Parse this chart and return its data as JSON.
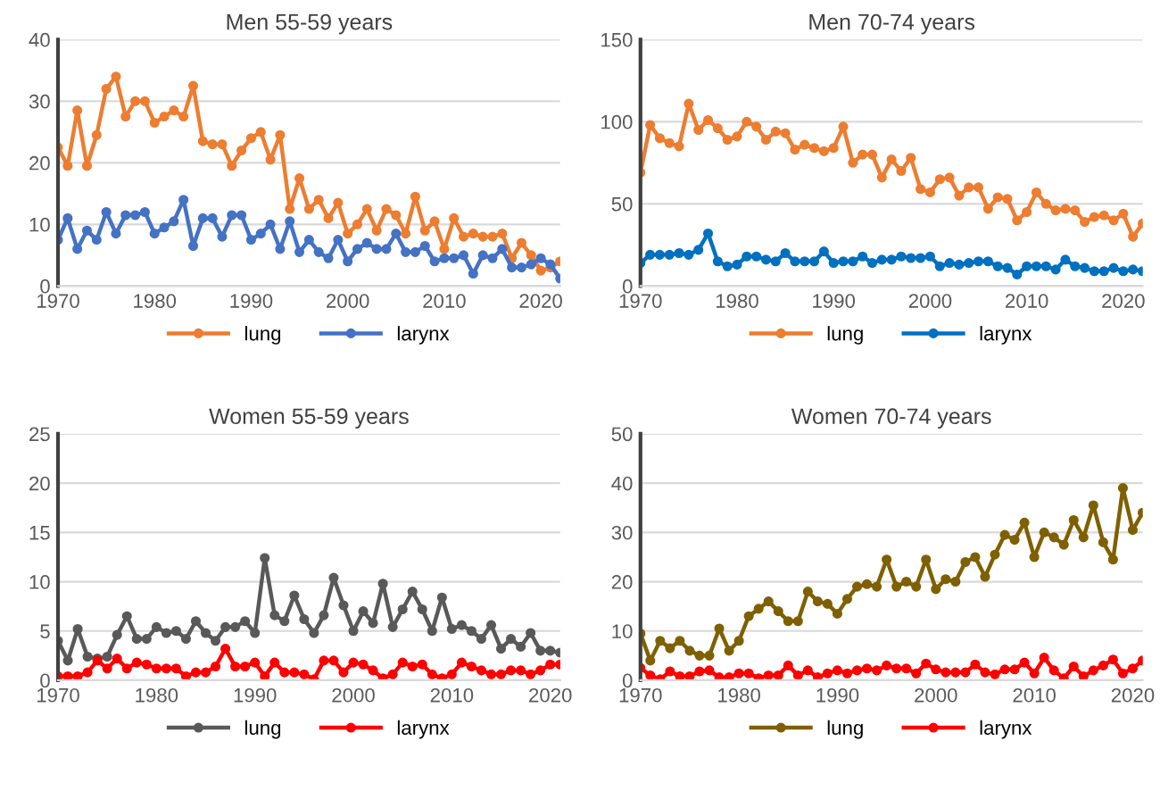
{
  "chart_data": [
    {
      "type": "line",
      "title": "Men 55-59 years",
      "x": [
        1970,
        1971,
        1972,
        1973,
        1974,
        1975,
        1976,
        1977,
        1978,
        1979,
        1980,
        1981,
        1982,
        1983,
        1984,
        1985,
        1986,
        1987,
        1988,
        1989,
        1990,
        1991,
        1992,
        1993,
        1994,
        1995,
        1996,
        1997,
        1998,
        1999,
        2000,
        2001,
        2002,
        2003,
        2004,
        2005,
        2006,
        2007,
        2008,
        2009,
        2010,
        2011,
        2012,
        2013,
        2014,
        2015,
        2016,
        2017,
        2018,
        2019,
        2020,
        2021,
        2022
      ],
      "xlim": [
        1970,
        2022
      ],
      "xticks": [
        1970,
        1980,
        1990,
        2000,
        2010,
        2020
      ],
      "ylim": [
        0,
        40
      ],
      "yticks": [
        0,
        10,
        20,
        30,
        40
      ],
      "grid": "y",
      "legend": "bottom",
      "marker": "circle",
      "line_style": "solid",
      "series": [
        {
          "name": "lung",
          "color": "#ed7d31",
          "values": [
            22.5,
            19.5,
            28.5,
            19.5,
            24.5,
            32,
            34,
            27.5,
            30,
            30,
            26.5,
            27.5,
            28.5,
            27.5,
            32.5,
            23.5,
            23,
            23,
            19.5,
            22,
            24,
            25,
            20.5,
            24.5,
            12.5,
            17.5,
            12.5,
            14,
            11,
            13.5,
            8.5,
            10,
            12.5,
            9,
            12.5,
            11.5,
            8.5,
            14.5,
            9,
            10.5,
            6,
            11,
            8,
            8.5,
            8,
            8,
            8.5,
            4.5,
            7,
            5,
            2.5,
            3,
            4
          ]
        },
        {
          "name": "larynx",
          "color": "#4472c4",
          "values": [
            7.5,
            11,
            6,
            9,
            7.5,
            12,
            8.5,
            11.5,
            11.5,
            12,
            8.5,
            9.5,
            10.5,
            14,
            6.5,
            11,
            11,
            8,
            11.5,
            11.5,
            7.5,
            8.5,
            10,
            6,
            10.5,
            5.5,
            7.5,
            5.5,
            4.5,
            7.5,
            4,
            6,
            7,
            6,
            6,
            8.5,
            5.5,
            5.5,
            6.5,
            4,
            4.5,
            4.5,
            5,
            2,
            5,
            4.5,
            6,
            3,
            3,
            3.5,
            4.5,
            3.5,
            1.2
          ]
        }
      ]
    },
    {
      "type": "line",
      "title": "Men 70-74 years",
      "x": [
        1970,
        1971,
        1972,
        1973,
        1974,
        1975,
        1976,
        1977,
        1978,
        1979,
        1980,
        1981,
        1982,
        1983,
        1984,
        1985,
        1986,
        1987,
        1988,
        1989,
        1990,
        1991,
        1992,
        1993,
        1994,
        1995,
        1996,
        1997,
        1998,
        1999,
        2000,
        2001,
        2002,
        2003,
        2004,
        2005,
        2006,
        2007,
        2008,
        2009,
        2010,
        2011,
        2012,
        2013,
        2014,
        2015,
        2016,
        2017,
        2018,
        2019,
        2020,
        2021,
        2022
      ],
      "xlim": [
        1970,
        2022
      ],
      "xticks": [
        1970,
        1980,
        1990,
        2000,
        2010,
        2020
      ],
      "ylim": [
        0,
        150
      ],
      "yticks": [
        0,
        50,
        100,
        150
      ],
      "grid": "y",
      "legend": "bottom",
      "marker": "circle",
      "line_style": "solid",
      "series": [
        {
          "name": "lung",
          "color": "#ed7d31",
          "values": [
            69,
            98,
            90,
            87,
            85,
            111,
            95,
            101,
            96,
            89,
            91,
            100,
            97,
            89,
            94,
            93,
            83,
            86,
            84,
            82,
            84,
            97,
            75,
            80,
            80,
            66,
            77,
            70,
            78,
            59,
            57,
            65,
            66,
            55,
            60,
            60,
            47,
            54,
            53,
            40,
            45,
            57,
            50,
            46,
            47,
            46,
            39,
            42,
            43,
            40,
            44,
            30,
            38
          ]
        },
        {
          "name": "larynx",
          "color": "#0070c0",
          "values": [
            14,
            19,
            19,
            19,
            20,
            19,
            22,
            32,
            15,
            12,
            13,
            18,
            18,
            16,
            15,
            20,
            15,
            15,
            15,
            21,
            14,
            15,
            15,
            18,
            14,
            16,
            16,
            18,
            17,
            17,
            18,
            12,
            14,
            13,
            14,
            15,
            15,
            12,
            11,
            7,
            12,
            12,
            12,
            10,
            16,
            12,
            11,
            9,
            9,
            11,
            9,
            10,
            9
          ]
        }
      ]
    },
    {
      "type": "line",
      "title": "Women 55-59 years",
      "x": [
        1970,
        1971,
        1972,
        1973,
        1974,
        1975,
        1976,
        1977,
        1978,
        1979,
        1980,
        1981,
        1982,
        1983,
        1984,
        1985,
        1986,
        1987,
        1988,
        1989,
        1990,
        1991,
        1992,
        1993,
        1994,
        1995,
        1996,
        1997,
        1998,
        1999,
        2000,
        2001,
        2002,
        2003,
        2004,
        2005,
        2006,
        2007,
        2008,
        2009,
        2010,
        2011,
        2012,
        2013,
        2014,
        2015,
        2016,
        2017,
        2018,
        2019,
        2020,
        2021
      ],
      "xlim": [
        1970,
        2021
      ],
      "xticks": [
        1970,
        1980,
        1990,
        2000,
        2010,
        2020
      ],
      "ylim": [
        0,
        25
      ],
      "yticks": [
        0,
        5,
        10,
        15,
        20,
        25
      ],
      "grid": "y",
      "legend": "bottom",
      "marker": "circle",
      "line_style": "solid",
      "series": [
        {
          "name": "lung",
          "color": "#595959",
          "values": [
            4,
            2,
            5.2,
            2.4,
            2.2,
            2.4,
            4.6,
            6.5,
            4.2,
            4.2,
            5.4,
            4.8,
            5,
            4.2,
            6,
            4.8,
            4,
            5.4,
            5.4,
            6,
            4.8,
            12.4,
            6.6,
            6,
            8.6,
            6.2,
            4.8,
            6.6,
            10.4,
            7.6,
            5,
            7,
            5.8,
            9.8,
            5.4,
            7.2,
            9,
            7.2,
            5,
            8.4,
            5.2,
            5.6,
            5,
            4.2,
            5.6,
            3.2,
            4.2,
            3.4,
            4.8,
            3,
            3,
            2.8
          ]
        },
        {
          "name": "larynx",
          "color": "#ff0000",
          "values": [
            0.4,
            0.4,
            0.4,
            0.8,
            2,
            1.2,
            2.2,
            1.2,
            1.8,
            1.6,
            1.2,
            1.2,
            1.2,
            0.4,
            0.8,
            0.8,
            1.4,
            3.2,
            1.4,
            1.4,
            1.8,
            0.4,
            1.8,
            0.8,
            0.8,
            0.6,
            0.1,
            2,
            2,
            0.8,
            1.8,
            1.6,
            1,
            0.2,
            0.6,
            1.8,
            1.4,
            1.6,
            0.6,
            0.2,
            0.6,
            1.8,
            1.4,
            1,
            0.6,
            0.6,
            1,
            1,
            0.6,
            1,
            1.6,
            1.6
          ]
        }
      ]
    },
    {
      "type": "line",
      "title": "Women 70-74 years",
      "x": [
        1970,
        1971,
        1972,
        1973,
        1974,
        1975,
        1976,
        1977,
        1978,
        1979,
        1980,
        1981,
        1982,
        1983,
        1984,
        1985,
        1986,
        1987,
        1988,
        1989,
        1990,
        1991,
        1992,
        1993,
        1994,
        1995,
        1996,
        1997,
        1998,
        1999,
        2000,
        2001,
        2002,
        2003,
        2004,
        2005,
        2006,
        2007,
        2008,
        2009,
        2010,
        2011,
        2012,
        2013,
        2014,
        2015,
        2016,
        2017,
        2018,
        2019,
        2020,
        2021
      ],
      "xlim": [
        1970,
        2021
      ],
      "xticks": [
        1970,
        1980,
        1990,
        2000,
        2010,
        2020
      ],
      "ylim": [
        0,
        50
      ],
      "yticks": [
        0,
        10,
        20,
        30,
        40,
        50
      ],
      "grid": "y",
      "legend": "bottom",
      "marker": "circle",
      "line_style": "solid",
      "series": [
        {
          "name": "lung",
          "color": "#7f6000",
          "values": [
            9.5,
            4,
            8,
            6.5,
            8,
            6,
            5,
            5,
            10.5,
            6,
            8,
            13,
            14.5,
            16,
            14,
            12,
            12,
            18,
            16,
            15.5,
            13.5,
            16.5,
            19,
            19.5,
            19,
            24.5,
            19,
            20,
            19,
            24.5,
            18.5,
            20.5,
            20,
            24,
            25,
            21,
            25.5,
            29.5,
            28.5,
            32,
            25,
            30,
            29,
            27.5,
            32.5,
            29,
            35.5,
            28,
            24.5,
            39,
            30.5,
            34
          ]
        },
        {
          "name": "larynx",
          "color": "#ff0000",
          "values": [
            2.5,
            1,
            0.2,
            1.8,
            0.8,
            0.8,
            1.8,
            2,
            0.6,
            0.6,
            1.4,
            1.4,
            0.4,
            1,
            1,
            3,
            1,
            2,
            0.6,
            1.4,
            2,
            1.4,
            2,
            2.4,
            2,
            3,
            2.4,
            2.4,
            1.4,
            3.4,
            2.2,
            1.6,
            1.6,
            1.6,
            3.2,
            1.6,
            1.2,
            2.2,
            2.2,
            3.6,
            1.4,
            4.6,
            2,
            0.4,
            2.8,
            0.8,
            2,
            3,
            4.2,
            1.4,
            2.4,
            4
          ]
        }
      ]
    }
  ]
}
